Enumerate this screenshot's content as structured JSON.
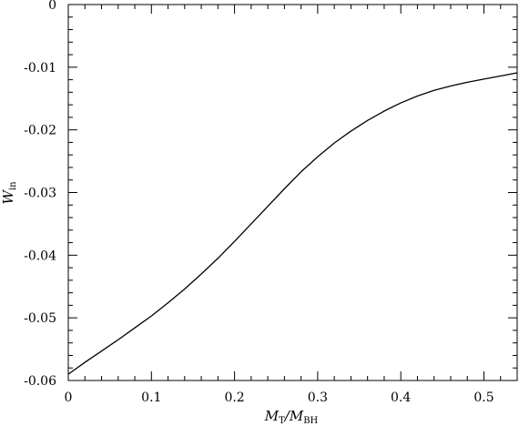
{
  "chart_data": {
    "type": "line",
    "xlabel": {
      "main": "M",
      "sub1": "T",
      "sep": "/M",
      "sub2": "BH"
    },
    "ylabel": {
      "main": "W",
      "sub": "in"
    },
    "xlim": [
      0,
      0.54
    ],
    "ylim": [
      -0.06,
      0
    ],
    "x_ticks": [
      "0",
      "0.1",
      "0.2",
      "0.3",
      "0.4",
      "0.5"
    ],
    "y_ticks": [
      "0",
      "-0.01",
      "-0.02",
      "-0.03",
      "-0.04",
      "-0.05",
      "-0.06"
    ],
    "grid": false,
    "line_color": "#000000",
    "series": [
      {
        "x": [
          0.0,
          0.02,
          0.04,
          0.06,
          0.08,
          0.1,
          0.12,
          0.14,
          0.16,
          0.18,
          0.2,
          0.22,
          0.24,
          0.26,
          0.28,
          0.3,
          0.32,
          0.34,
          0.36,
          0.38,
          0.4,
          0.42,
          0.44,
          0.46,
          0.48,
          0.5,
          0.52,
          0.54
        ],
        "y": [
          -0.059,
          -0.0571,
          -0.0553,
          -0.0535,
          -0.0516,
          -0.0497,
          -0.0476,
          -0.0454,
          -0.043,
          -0.0405,
          -0.0378,
          -0.035,
          -0.0322,
          -0.0294,
          -0.0267,
          -0.0243,
          -0.0221,
          -0.0202,
          -0.0185,
          -0.017,
          -0.0157,
          -0.0146,
          -0.0137,
          -0.013,
          -0.0124,
          -0.0119,
          -0.0114,
          -0.0109
        ]
      }
    ]
  }
}
